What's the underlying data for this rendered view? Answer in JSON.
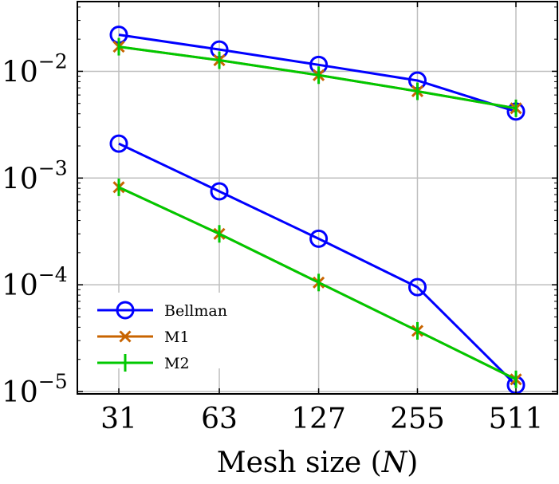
{
  "chart_data": {
    "type": "line",
    "xscale": "log2",
    "yscale": "log10",
    "x": [
      31,
      63,
      127,
      255,
      511
    ],
    "x_tick_labels": [
      "31",
      "63",
      "127",
      "255",
      "511"
    ],
    "y_tick_values": [
      1e-05,
      0.0001,
      0.001,
      0.01
    ],
    "y_tick_labels": [
      {
        "base": "10",
        "exp": "−5"
      },
      {
        "base": "10",
        "exp": "−4"
      },
      {
        "base": "10",
        "exp": "−3"
      },
      {
        "base": "10",
        "exp": "−2"
      }
    ],
    "xlabel": {
      "prefix": "Mesh size (",
      "var": "N",
      "suffix": ")"
    },
    "ylabel": "",
    "ylim": [
      9.5e-06,
      0.045
    ],
    "grid": true,
    "legend_position": "bottom-left",
    "series": [
      {
        "name": "Bellman",
        "color": "#0000ff",
        "marker": "circle",
        "values": [
          0.022,
          0.016,
          0.0115,
          0.0082,
          0.0042
        ]
      },
      {
        "name": "M1",
        "color": "#c86400",
        "marker": "x",
        "values": [
          0.017,
          0.0127,
          0.0092,
          0.0065,
          0.0045
        ]
      },
      {
        "name": "M2",
        "color": "#00c800",
        "marker": "plus",
        "values": [
          0.017,
          0.0127,
          0.0092,
          0.0065,
          0.0045
        ]
      },
      {
        "name": "Bellman",
        "color": "#0000ff",
        "marker": "circle",
        "values": [
          0.0021,
          0.00075,
          0.00027,
          9.5e-05,
          1.15e-05
        ]
      },
      {
        "name": "M1",
        "color": "#c86400",
        "marker": "x",
        "values": [
          0.00082,
          0.0003,
          0.000105,
          3.7e-05,
          1.3e-05
        ]
      },
      {
        "name": "M2",
        "color": "#00c800",
        "marker": "plus",
        "values": [
          0.00082,
          0.0003,
          0.000105,
          3.7e-05,
          1.3e-05
        ]
      }
    ],
    "legend": [
      {
        "label": "Bellman",
        "color": "#0000ff",
        "marker": "circle"
      },
      {
        "label": "M1",
        "color": "#c86400",
        "marker": "x"
      },
      {
        "label": "M2",
        "color": "#00c800",
        "marker": "plus"
      }
    ]
  }
}
